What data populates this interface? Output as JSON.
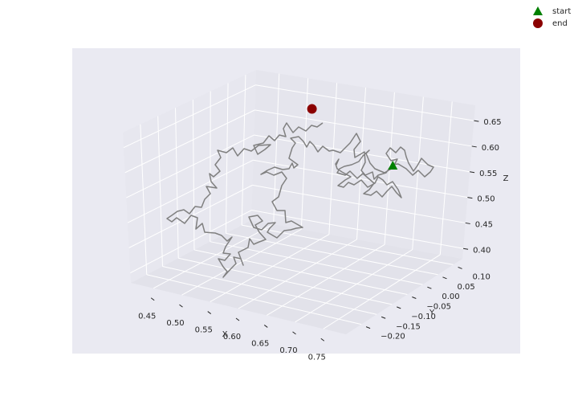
{
  "chart_data": {
    "type": "line",
    "projection": "3d",
    "style": "seaborn-darkgrid",
    "grid": true,
    "legend_position": "top-right",
    "axes": {
      "x": {
        "label": "X",
        "range": [
          0.41,
          0.79
        ],
        "ticks": [
          "0.45",
          "0.50",
          "0.55",
          "0.60",
          "0.65",
          "0.70",
          "0.75"
        ]
      },
      "y": {
        "label": "Y",
        "range": [
          -0.25,
          0.13
        ],
        "ticks": [
          "−0.20",
          "−0.15",
          "−0.10",
          "−0.05",
          "0.00",
          "0.05",
          "0.10"
        ]
      },
      "z": {
        "label": "Z",
        "range": [
          0.38,
          0.68
        ],
        "ticks": [
          "0.40",
          "0.45",
          "0.50",
          "0.55",
          "0.60",
          "0.65"
        ]
      }
    },
    "series": [
      {
        "color": "#808080",
        "kind": "line",
        "description_points": "3D random walk, 300 steps"
      }
    ],
    "markers": [
      {
        "name": "start",
        "shape": "triangle",
        "color": "#008000",
        "x": 0.7,
        "y": 0.05,
        "z": 0.57
      },
      {
        "name": "end",
        "shape": "circle",
        "color": "#8b0000",
        "x": 0.55,
        "y": 0.06,
        "z": 0.65
      }
    ],
    "colors": {
      "pane": "#eaeaf2",
      "grid": "#ffffff",
      "line": "#808080"
    }
  }
}
